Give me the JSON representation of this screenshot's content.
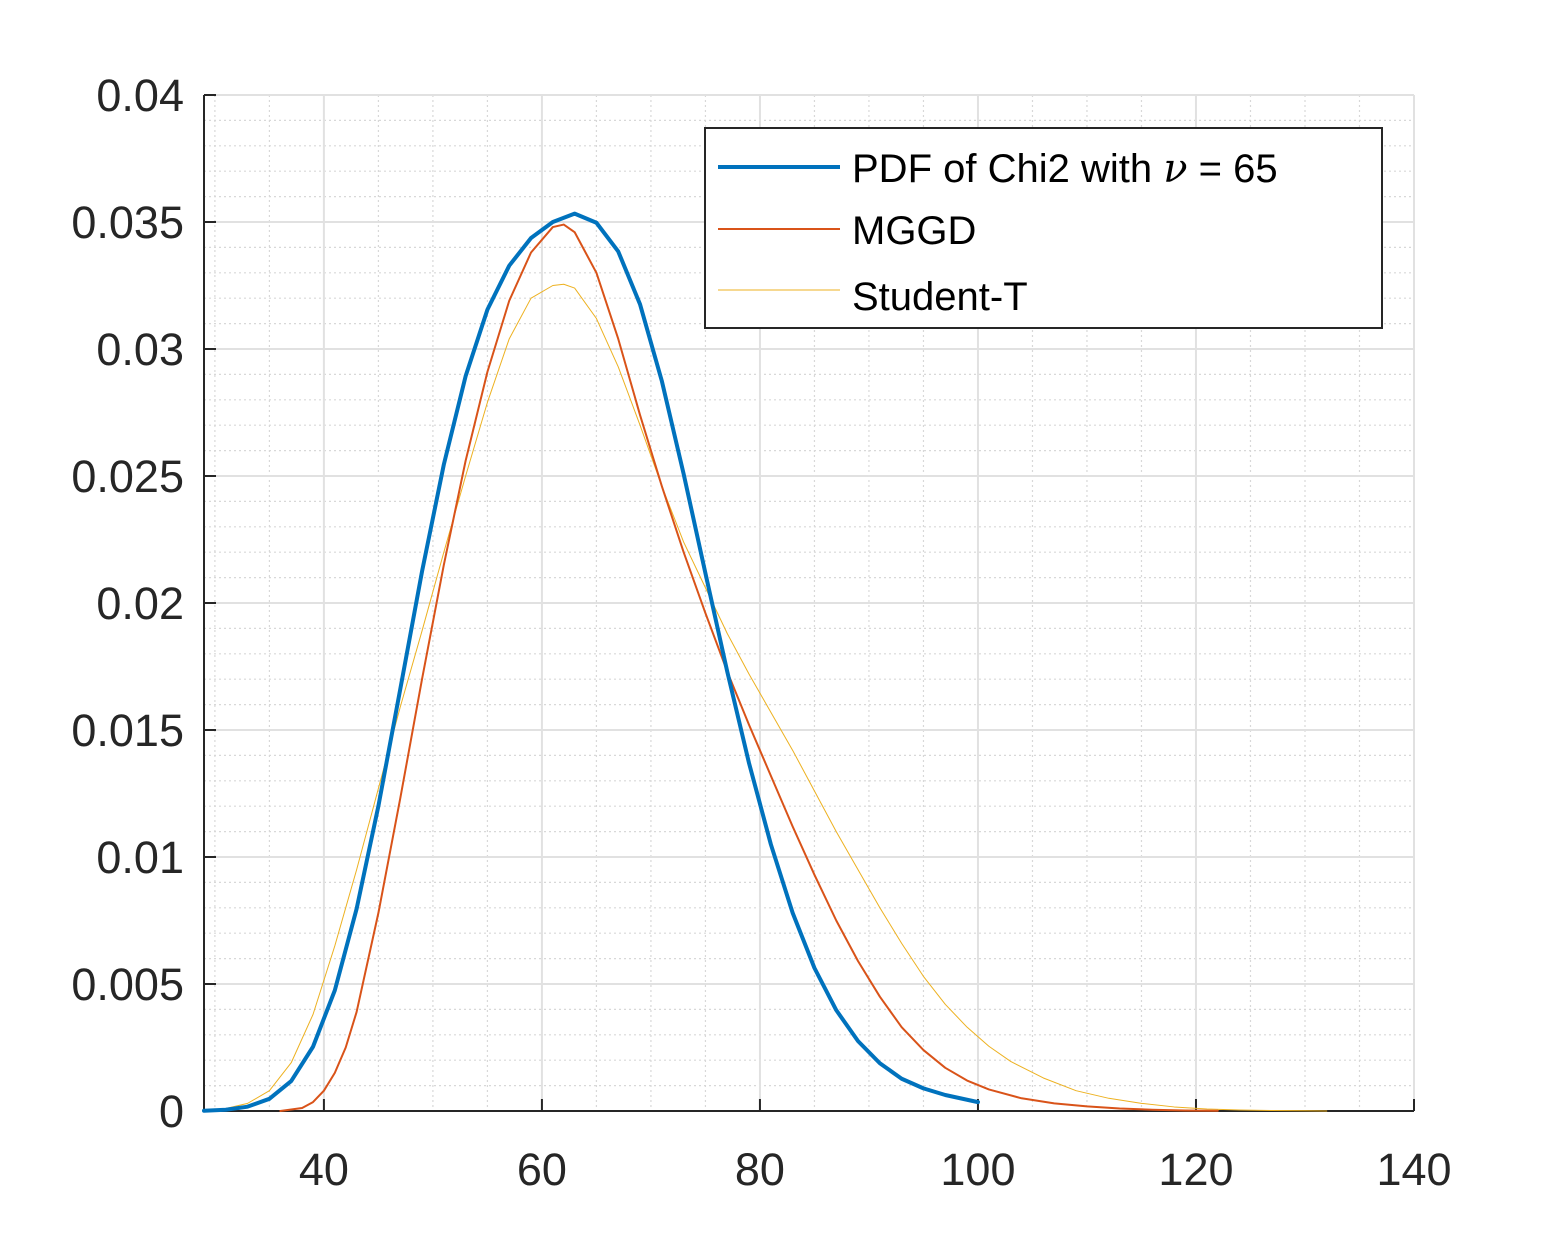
{
  "chart_data": {
    "type": "line",
    "title": "",
    "xlabel": "",
    "ylabel": "",
    "xlim": [
      29,
      140
    ],
    "ylim": [
      0,
      0.04
    ],
    "grid": true,
    "minor_grid": true,
    "x_ticks": [
      40,
      60,
      80,
      100,
      120,
      140
    ],
    "x_tick_labels": [
      "40",
      "60",
      "80",
      "100",
      "120",
      "140"
    ],
    "y_ticks": [
      0,
      0.005,
      0.01,
      0.015,
      0.02,
      0.025,
      0.03,
      0.035,
      0.04
    ],
    "y_tick_labels": [
      "0",
      "0.005",
      "0.01",
      "0.015",
      "0.02",
      "0.025",
      "0.03",
      "0.035",
      "0.04"
    ],
    "legend": {
      "placement": "top-right",
      "entries": [
        {
          "prefix": "PDF of Chi2 with ",
          "symbol": "ν",
          "suffix": " = 65"
        },
        {
          "label": "MGGD"
        },
        {
          "label": "Student-T"
        }
      ]
    },
    "series": [
      {
        "name": "PDF of Chi2 with ν = 65",
        "color": "#0072BD",
        "style": "thick",
        "x": [
          29,
          31,
          33,
          35,
          37,
          39,
          41,
          43,
          45,
          47,
          49,
          51,
          53,
          55,
          57,
          59,
          61,
          63,
          65,
          67,
          69,
          71,
          73,
          75,
          77,
          79,
          81,
          83,
          85,
          87,
          89,
          91,
          93,
          95,
          97,
          100
        ],
        "y": [
          1e-05,
          5e-05,
          0.00017,
          0.00048,
          0.00118,
          0.00253,
          0.00475,
          0.00796,
          0.01201,
          0.0166,
          0.02124,
          0.02545,
          0.02893,
          0.03155,
          0.03328,
          0.03437,
          0.035,
          0.03533,
          0.03497,
          0.03384,
          0.03176,
          0.02874,
          0.02508,
          0.02117,
          0.0173,
          0.01369,
          0.0105,
          0.0078,
          0.00563,
          0.00397,
          0.00275,
          0.00188,
          0.00127,
          0.00089,
          0.00063,
          0.00035
        ]
      },
      {
        "name": "MGGD",
        "color": "#D95319",
        "style": "thin",
        "x": [
          36,
          38,
          39,
          40,
          41,
          42,
          43,
          45,
          47,
          49,
          51,
          53,
          55,
          57,
          59,
          61,
          62,
          63,
          65,
          67,
          69,
          71,
          73,
          75,
          77,
          79,
          81,
          83,
          85,
          87,
          89,
          91,
          93,
          95,
          97,
          99,
          101,
          104,
          107,
          110,
          113,
          116,
          119,
          122
        ],
        "y": [
          0.0,
          0.00012,
          0.00035,
          0.0008,
          0.0015,
          0.0025,
          0.0039,
          0.0078,
          0.0123,
          0.017,
          0.0215,
          0.0256,
          0.0291,
          0.0319,
          0.0338,
          0.0348,
          0.0349,
          0.0346,
          0.033,
          0.0304,
          0.0274,
          0.0246,
          0.022,
          0.0196,
          0.0173,
          0.0152,
          0.0132,
          0.0112,
          0.0093,
          0.0075,
          0.0059,
          0.0045,
          0.0033,
          0.0024,
          0.0017,
          0.0012,
          0.00085,
          0.0005,
          0.0003,
          0.00018,
          0.0001,
          5e-05,
          2e-05,
          1e-05
        ]
      },
      {
        "name": "Student-T",
        "color": "#EDB120",
        "style": "hairline",
        "x": [
          29,
          31,
          33,
          35,
          37,
          39,
          41,
          43,
          45,
          47,
          49,
          51,
          53,
          55,
          57,
          59,
          61,
          62,
          63,
          65,
          67,
          69,
          71,
          73,
          75,
          77,
          79,
          81,
          83,
          85,
          87,
          89,
          91,
          93,
          95,
          97,
          99,
          101,
          103,
          106,
          109,
          112,
          115,
          118,
          121,
          124,
          127,
          130,
          132
        ],
        "y": [
          0.0,
          0.0001,
          0.0003,
          0.0008,
          0.0019,
          0.0038,
          0.0065,
          0.0095,
          0.0127,
          0.0159,
          0.0189,
          0.022,
          0.025,
          0.0279,
          0.0304,
          0.032,
          0.0325,
          0.03255,
          0.0324,
          0.0312,
          0.0293,
          0.027,
          0.0246,
          0.0224,
          0.0206,
          0.0188,
          0.0172,
          0.0157,
          0.0142,
          0.0126,
          0.011,
          0.0095,
          0.008,
          0.0066,
          0.0053,
          0.0042,
          0.0033,
          0.00255,
          0.00195,
          0.0013,
          0.0008,
          0.0005,
          0.0003,
          0.00016,
          8e-05,
          4e-05,
          2e-05,
          1e-05,
          0.0
        ]
      }
    ]
  }
}
